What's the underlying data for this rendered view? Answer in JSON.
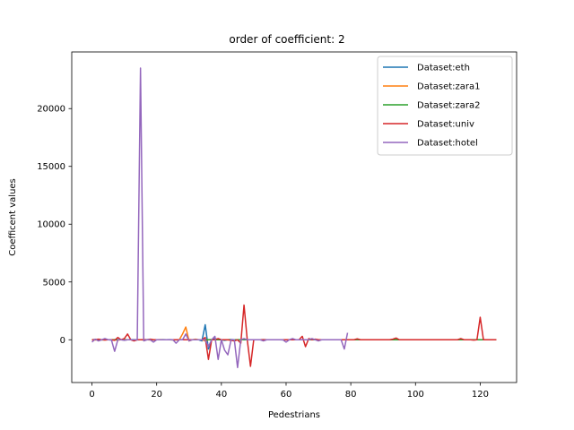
{
  "chart_data": {
    "type": "line",
    "title": "order of coefficient: 2",
    "xlabel": "Pedestrians",
    "ylabel": "Coefficent values",
    "xlim": [
      -6.25,
      131.25
    ],
    "ylim": [
      -3700,
      24900
    ],
    "xticks": [
      0,
      20,
      40,
      60,
      80,
      100,
      120
    ],
    "yticks": [
      0,
      5000,
      10000,
      15000,
      20000
    ],
    "grid": false,
    "legend_position": "top-right",
    "series": [
      {
        "name": "Dataset:eth",
        "color": "#1f77b4",
        "x": [
          0,
          1,
          2,
          3,
          4,
          5,
          6,
          7,
          8,
          9,
          10,
          11,
          12,
          13,
          14,
          15,
          16,
          17,
          18,
          19,
          20,
          21,
          22,
          23,
          24,
          25,
          26,
          27,
          28,
          29,
          30,
          31,
          32,
          33,
          34,
          35,
          36,
          37,
          38,
          39,
          40,
          41,
          42,
          43,
          44,
          45,
          46,
          47,
          48,
          49,
          50,
          51,
          52,
          53,
          54,
          55,
          56,
          57,
          58,
          59,
          60,
          61,
          62,
          63,
          64,
          65,
          66,
          67,
          68,
          69,
          70,
          71,
          72,
          73,
          74,
          75,
          76,
          77,
          78
        ],
        "y": [
          0,
          10,
          -10,
          5,
          0,
          0,
          -20,
          10,
          0,
          0,
          5,
          0,
          10,
          0,
          -5,
          0,
          0,
          10,
          0,
          -10,
          0,
          5,
          0,
          0,
          10,
          0,
          -5,
          0,
          10,
          0,
          0,
          5,
          0,
          0,
          -100,
          1300,
          -800,
          0,
          100,
          0,
          0,
          -50,
          0,
          20,
          0,
          0,
          0,
          0,
          0,
          0,
          0,
          0,
          0,
          10,
          0,
          0,
          0,
          0,
          0,
          -10,
          0,
          0,
          10,
          0,
          0,
          0,
          0,
          0,
          0,
          10,
          0,
          0,
          0,
          0,
          0,
          0,
          0,
          0,
          0
        ]
      },
      {
        "name": "Dataset:zara1",
        "color": "#ff7f0e",
        "x": [
          0,
          1,
          2,
          3,
          4,
          5,
          6,
          7,
          8,
          9,
          10,
          11,
          12,
          13,
          14,
          15,
          16,
          17,
          18,
          19,
          20,
          21,
          22,
          23,
          24,
          25,
          26,
          27,
          28,
          29,
          30,
          31,
          32,
          33,
          34,
          35,
          36,
          37,
          38,
          39,
          40,
          41,
          42,
          43,
          44,
          45,
          46,
          47,
          48,
          49,
          50,
          51,
          52,
          53,
          54,
          55,
          56,
          57,
          58,
          59,
          60,
          61,
          62,
          63,
          64,
          65,
          66,
          67,
          68,
          69,
          70,
          71,
          72,
          73,
          74,
          75,
          76,
          77,
          78,
          79,
          80,
          81,
          82,
          83,
          84,
          85,
          86,
          87,
          88,
          89,
          90,
          91,
          92,
          93,
          94,
          95,
          96,
          97,
          98,
          99,
          100,
          101,
          102,
          103,
          104,
          105,
          106,
          107,
          108,
          109,
          110,
          111,
          112,
          113,
          114,
          115,
          116,
          117,
          118,
          119,
          120,
          121,
          122,
          123,
          124,
          125
        ],
        "y": [
          0,
          -20,
          20,
          0,
          -10,
          0,
          10,
          0,
          -30,
          0,
          20,
          0,
          0,
          -10,
          0,
          0,
          10,
          0,
          -20,
          0,
          0,
          10,
          0,
          0,
          0,
          -10,
          0,
          0,
          500,
          1100,
          -100,
          0,
          50,
          0,
          0,
          -100,
          0,
          20,
          0,
          0,
          0,
          0,
          -10,
          0,
          0,
          0,
          0,
          0,
          0,
          0,
          0,
          0,
          0,
          0,
          0,
          0,
          0,
          0,
          0,
          0,
          0,
          0,
          0,
          0,
          0,
          0,
          0,
          0,
          0,
          0,
          0,
          0,
          0,
          0,
          0,
          0,
          0,
          0,
          0,
          0,
          0,
          0,
          0,
          0,
          0,
          0,
          0,
          0,
          0,
          0,
          0,
          0,
          0,
          0,
          0,
          0,
          0,
          0,
          0,
          0,
          0,
          0,
          0,
          0,
          0,
          0,
          0,
          0,
          0,
          0,
          0,
          0,
          0,
          0,
          0,
          0,
          0,
          0,
          0,
          0,
          0,
          0,
          0,
          0,
          0,
          0
        ]
      },
      {
        "name": "Dataset:zara2",
        "color": "#2ca02c",
        "x": [
          0,
          1,
          2,
          3,
          4,
          5,
          6,
          7,
          8,
          9,
          10,
          11,
          12,
          13,
          14,
          15,
          16,
          17,
          18,
          19,
          20,
          21,
          22,
          23,
          24,
          25,
          26,
          27,
          28,
          29,
          30,
          31,
          32,
          33,
          34,
          35,
          36,
          37,
          38,
          39,
          40,
          41,
          42,
          43,
          44,
          45,
          46,
          47,
          48,
          49,
          50,
          51,
          52,
          53,
          54,
          55,
          56,
          57,
          58,
          59,
          60,
          61,
          62,
          63,
          64,
          65,
          66,
          67,
          68,
          69,
          70,
          71,
          72,
          73,
          74,
          75,
          76,
          77,
          78,
          79,
          80,
          81,
          82,
          83,
          84,
          85,
          86,
          87,
          88,
          89,
          90,
          91,
          92,
          93,
          94,
          95,
          96,
          97,
          98,
          99,
          100,
          101,
          102,
          103,
          104,
          105,
          106,
          107,
          108,
          109,
          110,
          111,
          112,
          113,
          114,
          115,
          116,
          117,
          118,
          119,
          120,
          121,
          122,
          123,
          124,
          125
        ],
        "y": [
          0,
          10,
          0,
          -10,
          0,
          5,
          0,
          0,
          10,
          0,
          -5,
          0,
          0,
          10,
          0,
          0,
          -10,
          0,
          5,
          0,
          0,
          0,
          10,
          0,
          0,
          -5,
          0,
          0,
          0,
          0,
          0,
          0,
          0,
          0,
          0,
          0,
          0,
          0,
          0,
          0,
          0,
          0,
          0,
          0,
          0,
          0,
          0,
          0,
          0,
          0,
          0,
          0,
          0,
          0,
          0,
          0,
          0,
          0,
          0,
          0,
          0,
          0,
          0,
          0,
          0,
          0,
          0,
          0,
          0,
          0,
          0,
          0,
          0,
          0,
          0,
          0,
          0,
          0,
          0,
          0,
          0,
          0,
          0,
          0,
          0,
          0,
          0,
          0,
          0,
          0,
          0,
          0,
          0,
          0,
          0,
          0,
          0,
          0,
          0,
          0,
          0,
          0,
          0,
          0,
          0,
          0,
          0,
          0,
          0,
          0,
          0,
          0,
          0,
          0,
          0,
          0,
          0,
          0,
          0,
          0,
          0,
          0,
          0,
          0,
          0,
          0
        ]
      },
      {
        "name": "Dataset:univ",
        "color": "#d62728",
        "x": [
          0,
          1,
          2,
          3,
          4,
          5,
          6,
          7,
          8,
          9,
          10,
          11,
          12,
          13,
          14,
          15,
          16,
          17,
          18,
          19,
          20,
          21,
          22,
          23,
          24,
          25,
          26,
          27,
          28,
          29,
          30,
          31,
          32,
          33,
          34,
          35,
          36,
          37,
          38,
          39,
          40,
          41,
          42,
          43,
          44,
          45,
          46,
          47,
          48,
          49,
          50,
          51,
          52,
          53,
          54,
          55,
          56,
          57,
          58,
          59,
          60,
          61,
          62,
          63,
          64,
          65,
          66,
          67,
          68,
          69,
          70,
          71,
          72,
          73,
          74,
          75,
          76,
          77,
          78,
          79,
          80,
          81,
          82,
          83,
          84,
          85,
          86,
          87,
          88,
          89,
          90,
          91,
          92,
          93,
          94,
          95,
          96,
          97,
          98,
          99,
          100,
          101,
          102,
          103,
          104,
          105,
          106,
          107,
          108,
          109,
          110,
          111,
          112,
          113,
          114,
          115,
          116,
          117,
          118,
          119,
          120,
          121,
          122,
          123,
          124,
          125
        ],
        "y": [
          0,
          0,
          50,
          0,
          -20,
          0,
          0,
          -50,
          200,
          0,
          100,
          500,
          0,
          -100,
          0,
          0,
          0,
          0,
          50,
          0,
          0,
          0,
          0,
          0,
          0,
          0,
          0,
          0,
          0,
          0,
          0,
          0,
          0,
          0,
          0,
          200,
          -1700,
          0,
          0,
          100,
          0,
          0,
          0,
          -50,
          -100,
          0,
          -300,
          3000,
          0,
          -2300,
          0,
          0,
          0,
          0,
          0,
          0,
          0,
          0,
          0,
          0,
          0,
          0,
          0,
          0,
          0,
          300,
          -600,
          100,
          0,
          50,
          0,
          0,
          0,
          0,
          0,
          0,
          0,
          0,
          0,
          0,
          0,
          0,
          80,
          0,
          0,
          0,
          0,
          0,
          0,
          0,
          0,
          0,
          0,
          50,
          150,
          0,
          0,
          0,
          0,
          0,
          0,
          0,
          0,
          0,
          0,
          0,
          0,
          0,
          0,
          0,
          0,
          0,
          0,
          0,
          100,
          0,
          0,
          0,
          -30,
          0,
          1950,
          0,
          0,
          0,
          0,
          0
        ]
      },
      {
        "name": "Dataset:hotel",
        "color": "#9467bd",
        "x": [
          0,
          1,
          2,
          3,
          4,
          5,
          6,
          7,
          8,
          9,
          10,
          11,
          12,
          13,
          14,
          15,
          16,
          17,
          18,
          19,
          20,
          21,
          22,
          23,
          24,
          25,
          26,
          27,
          28,
          29,
          30,
          31,
          32,
          33,
          34,
          35,
          36,
          37,
          38,
          39,
          40,
          41,
          42,
          43,
          44,
          45,
          46,
          47,
          48,
          49,
          50,
          51,
          52,
          53,
          54,
          55,
          56,
          57,
          58,
          59,
          60,
          61,
          62,
          63,
          64,
          65,
          66,
          67,
          68,
          69,
          70,
          71,
          72,
          73,
          74,
          75,
          76,
          77,
          78,
          79
        ],
        "y": [
          -200,
          50,
          -100,
          0,
          100,
          0,
          0,
          -1000,
          0,
          0,
          -50,
          0,
          0,
          0,
          0,
          23500,
          -100,
          0,
          0,
          -200,
          0,
          0,
          0,
          0,
          0,
          0,
          -300,
          0,
          0,
          500,
          -100,
          0,
          0,
          0,
          0,
          0,
          -600,
          0,
          300,
          -1700,
          0,
          -900,
          -1300,
          0,
          0,
          -2400,
          0,
          100,
          0,
          0,
          0,
          0,
          0,
          -100,
          0,
          0,
          0,
          0,
          0,
          0,
          -200,
          0,
          100,
          0,
          0,
          0,
          0,
          0,
          100,
          0,
          -100,
          0,
          0,
          0,
          0,
          0,
          0,
          0,
          -800,
          600
        ]
      }
    ]
  }
}
